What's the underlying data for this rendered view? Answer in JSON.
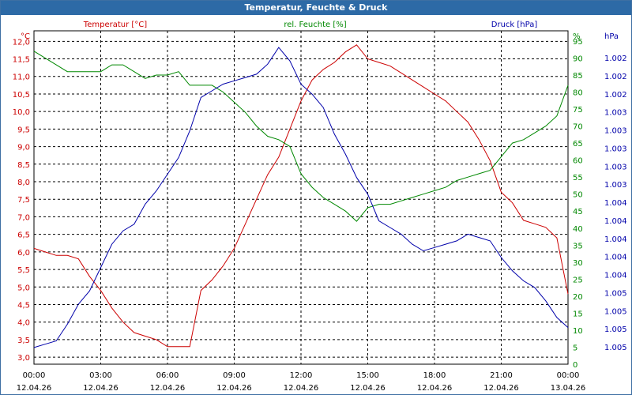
{
  "window": {
    "title": "Temperatur, Feuchte & Druck"
  },
  "colors": {
    "temperature": "#cc0000",
    "humidity": "#008800",
    "pressure": "#0000aa",
    "axis_text": "#000000",
    "title_bar": "#2d6aa6"
  },
  "chart_data": {
    "type": "line",
    "title": "Temperatur, Feuchte & Druck",
    "grid": true,
    "x": {
      "unit": "hours since 12.04.26 00:00",
      "range": [
        0,
        24
      ],
      "ticks": [
        0,
        3,
        6,
        9,
        12,
        15,
        18,
        21,
        24
      ],
      "tick_times": [
        "00:00",
        "03:00",
        "06:00",
        "09:00",
        "12:00",
        "15:00",
        "18:00",
        "21:00",
        "00:00"
      ],
      "tick_dates": [
        "12.04.26",
        "12.04.26",
        "12.04.26",
        "12.04.26",
        "12.04.26",
        "12.04.26",
        "12.04.26",
        "12.04.26",
        "13.04.26"
      ]
    },
    "axes": {
      "temperature": {
        "label": "Temperatur [°C]",
        "unit": "°C",
        "range": [
          2.8,
          12.3
        ],
        "ticks": [
          "3,0",
          "3,5",
          "4,0",
          "4,5",
          "5,0",
          "5,5",
          "6,0",
          "6,5",
          "7,0",
          "7,5",
          "8,0",
          "8,5",
          "9,0",
          "9,5",
          "10,0",
          "10,5",
          "11,0",
          "11,5",
          "12,0"
        ]
      },
      "humidity": {
        "label": "rel. Feuchte [%]",
        "unit": "%",
        "range": [
          0,
          98
        ],
        "ticks": [
          "0",
          "5",
          "10",
          "15",
          "20",
          "25",
          "30",
          "35",
          "40",
          "45",
          "50",
          "55",
          "60",
          "65",
          "70",
          "75",
          "80",
          "85",
          "90",
          "95"
        ]
      },
      "pressure": {
        "label": "Druck [hPa]",
        "unit": "hPa",
        "ticks": [
          "1.002",
          "1.002",
          "1.002",
          "1.003",
          "1.003",
          "1.003",
          "1.003",
          "1.003",
          "1.004",
          "1.004",
          "1.004",
          "1.004",
          "1.004",
          "1.005",
          "1.005",
          "1.005",
          "1.005"
        ]
      }
    },
    "series": [
      {
        "name": "Temperatur",
        "axis": "temperature",
        "x": [
          0,
          0.5,
          1,
          1.5,
          2,
          2.5,
          3,
          3.5,
          4,
          4.5,
          5,
          5.5,
          6,
          6.5,
          7,
          7.5,
          8,
          8.5,
          9,
          9.5,
          10,
          10.5,
          11,
          11.5,
          12,
          12.5,
          13,
          13.5,
          14,
          14.5,
          15,
          15.5,
          16,
          16.5,
          17,
          17.5,
          18,
          18.5,
          19,
          19.5,
          20,
          20.5,
          21,
          21.5,
          22,
          22.5,
          23,
          23.5,
          24
        ],
        "values": [
          6.1,
          6.0,
          5.9,
          5.9,
          5.8,
          5.3,
          4.9,
          4.4,
          4.0,
          3.7,
          3.6,
          3.5,
          3.3,
          3.3,
          3.3,
          4.9,
          5.2,
          5.6,
          6.1,
          6.8,
          7.5,
          8.2,
          8.7,
          9.5,
          10.3,
          10.9,
          11.2,
          11.4,
          11.7,
          11.9,
          11.5,
          11.4,
          11.3,
          11.1,
          10.9,
          10.7,
          10.5,
          10.3,
          10.0,
          9.7,
          9.2,
          8.6,
          7.7,
          7.4,
          6.9,
          6.8,
          6.7,
          6.4,
          4.8
        ]
      },
      {
        "name": "rel. Feuchte",
        "axis": "humidity",
        "x": [
          0,
          0.5,
          1,
          1.5,
          2,
          2.5,
          3,
          3.5,
          4,
          4.5,
          5,
          5.5,
          6,
          6.5,
          7,
          7.5,
          8,
          8.5,
          9,
          9.5,
          10,
          10.5,
          11,
          11.5,
          12,
          12.5,
          13,
          13.5,
          14,
          14.5,
          15,
          15.5,
          16,
          16.5,
          17,
          17.5,
          18,
          18.5,
          19,
          19.5,
          20,
          20.5,
          21,
          21.5,
          22,
          22.5,
          23,
          23.5,
          24
        ],
        "values": [
          92,
          90,
          88,
          86,
          86,
          86,
          86,
          88,
          88,
          86,
          84,
          85,
          85,
          86,
          82,
          82,
          82,
          80,
          77,
          74,
          70,
          67,
          66,
          64,
          56,
          52,
          49,
          47,
          45,
          42,
          46,
          47,
          47,
          48,
          49,
          50,
          51,
          52,
          54,
          55,
          56,
          57,
          61,
          65,
          66,
          68,
          70,
          73,
          82
        ]
      },
      {
        "name": "Druck",
        "axis": "pressure",
        "x": [
          0,
          0.5,
          1,
          1.5,
          2,
          2.5,
          3,
          3.5,
          4,
          4.5,
          5,
          5.5,
          6,
          6.5,
          7,
          7.5,
          8,
          8.5,
          9,
          9.5,
          10,
          10.5,
          11,
          11.5,
          12,
          12.5,
          13,
          13.5,
          14,
          14.5,
          15,
          15.5,
          16,
          16.5,
          17,
          17.5,
          18,
          18.5,
          19,
          19.5,
          20,
          20.5,
          21,
          21.5,
          22,
          22.5,
          23,
          23.5,
          24
        ],
        "values_normalized": [
          0.05,
          0.06,
          0.07,
          0.12,
          0.18,
          0.22,
          0.29,
          0.36,
          0.4,
          0.42,
          0.48,
          0.52,
          0.57,
          0.62,
          0.7,
          0.8,
          0.82,
          0.84,
          0.85,
          0.86,
          0.87,
          0.9,
          0.95,
          0.91,
          0.84,
          0.81,
          0.77,
          0.69,
          0.63,
          0.56,
          0.51,
          0.43,
          0.41,
          0.39,
          0.36,
          0.34,
          0.35,
          0.36,
          0.37,
          0.39,
          0.38,
          0.37,
          0.32,
          0.28,
          0.25,
          0.23,
          0.19,
          0.14,
          0.11
        ]
      }
    ]
  }
}
